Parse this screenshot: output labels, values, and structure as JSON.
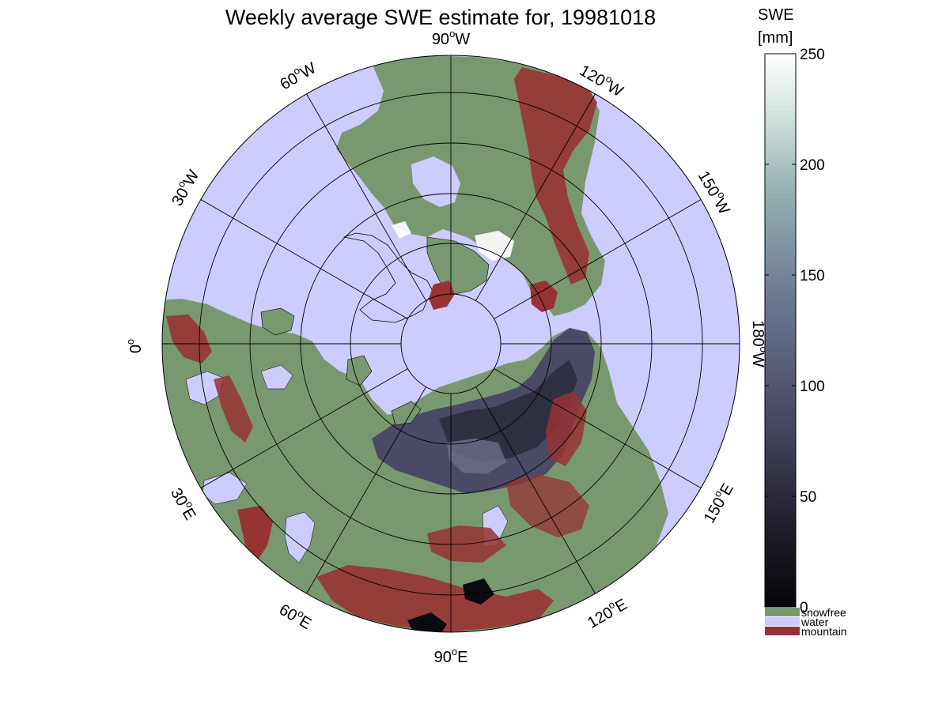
{
  "title": "Weekly average SWE estimate for, 19981018",
  "longitude_labels": [
    {
      "deg": "90",
      "hemi": "W"
    },
    {
      "deg": "120",
      "hemi": "W"
    },
    {
      "deg": "150",
      "hemi": "W"
    },
    {
      "deg": "180",
      "hemi": "W"
    },
    {
      "deg": "150",
      "hemi": "E"
    },
    {
      "deg": "120",
      "hemi": "E"
    },
    {
      "deg": "90",
      "hemi": "E"
    },
    {
      "deg": "60",
      "hemi": "E"
    },
    {
      "deg": "30",
      "hemi": "E"
    },
    {
      "deg": "0",
      "hemi": ""
    },
    {
      "deg": "30",
      "hemi": "W"
    },
    {
      "deg": "60",
      "hemi": "W"
    }
  ],
  "colorbar": {
    "title_line1": "SWE",
    "title_line2": "[mm]",
    "range": [
      0,
      250
    ],
    "ticks": [
      "0",
      "50",
      "100",
      "150",
      "200",
      "250"
    ]
  },
  "legend": [
    {
      "label": "snowfree",
      "color": "#78996f"
    },
    {
      "label": "water",
      "color": "#ccccff"
    },
    {
      "label": "mountain",
      "color": "#973333"
    }
  ],
  "colors": {
    "land": "#78996f",
    "water": "#ccccff",
    "mountain": "#973333",
    "snow_low": "#0a0a0f",
    "snow_mid": "#4d4d6b",
    "snow_high": "#ffffff"
  }
}
